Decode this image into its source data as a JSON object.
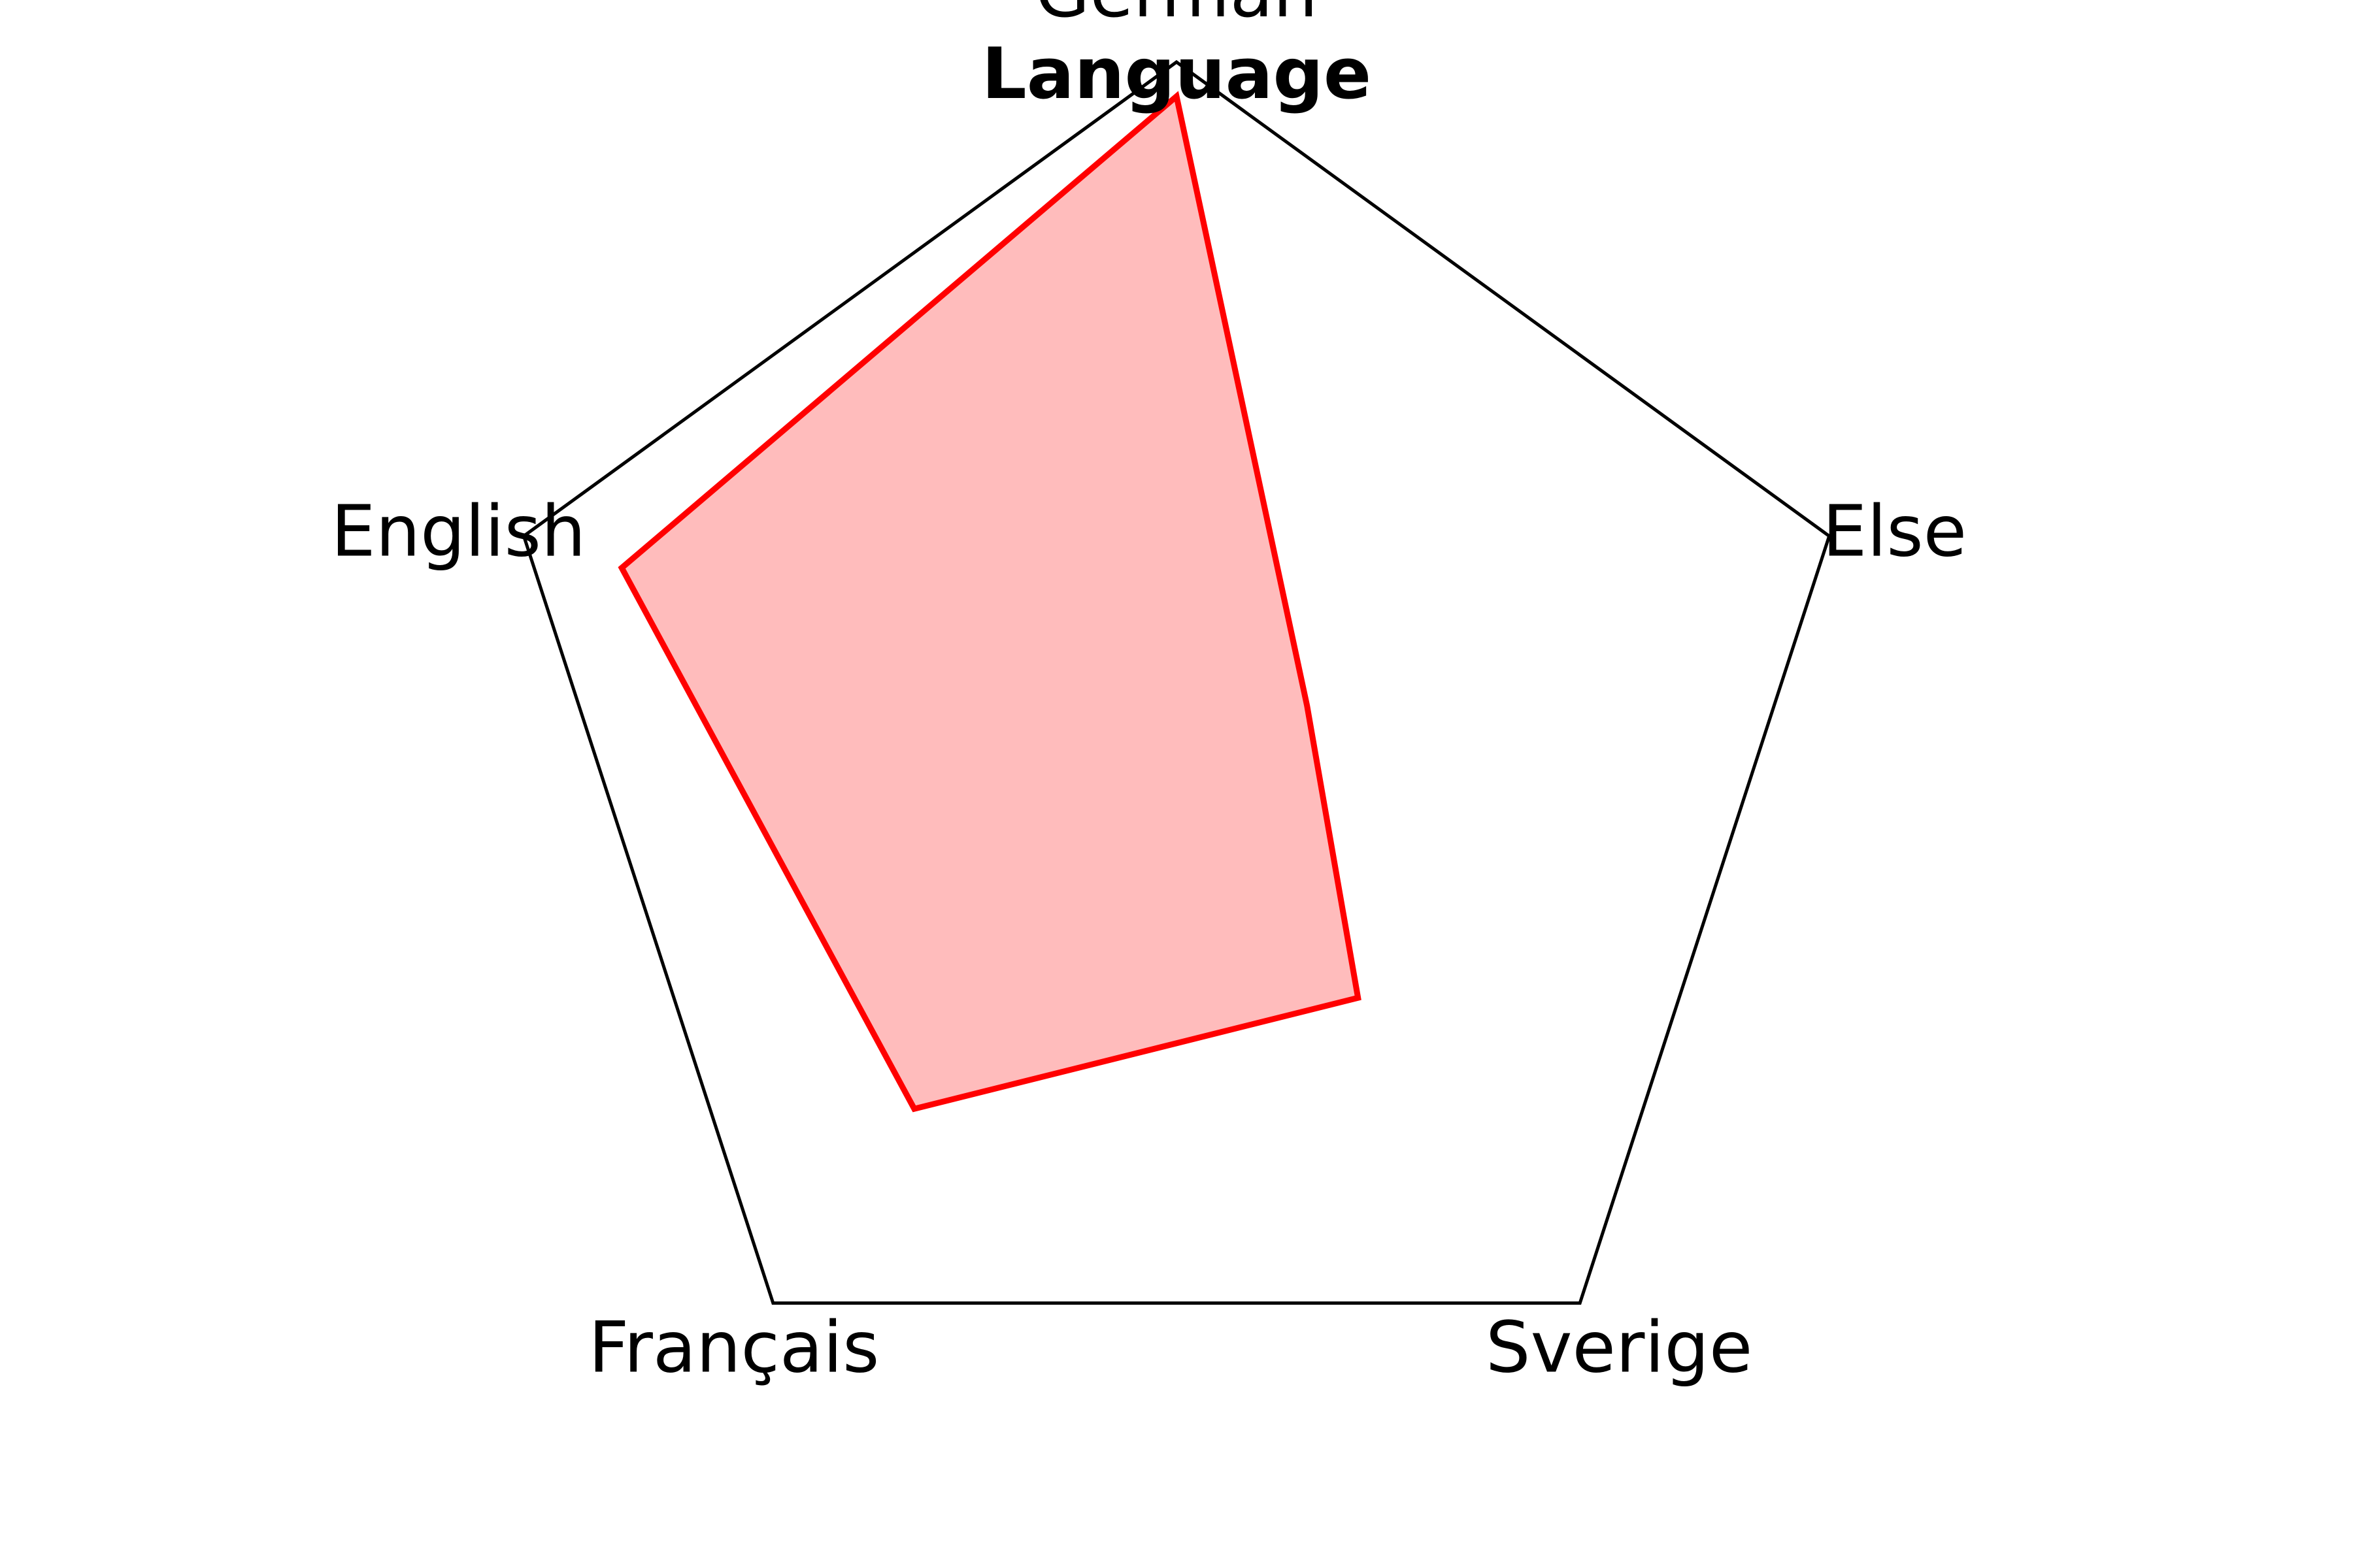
{
  "chart_data": {
    "type": "radar",
    "title": "Language",
    "categories": [
      "German",
      "Else",
      "Sverige",
      "Français",
      "English"
    ],
    "series": [
      {
        "values": [
          0.95,
          0.2,
          0.45,
          0.65,
          0.85
        ]
      }
    ],
    "rlim": [
      0,
      1
    ],
    "grid": false,
    "colors": {
      "frame": "#000000",
      "line": "#ff0000",
      "fill": "#ffbcbc"
    }
  }
}
